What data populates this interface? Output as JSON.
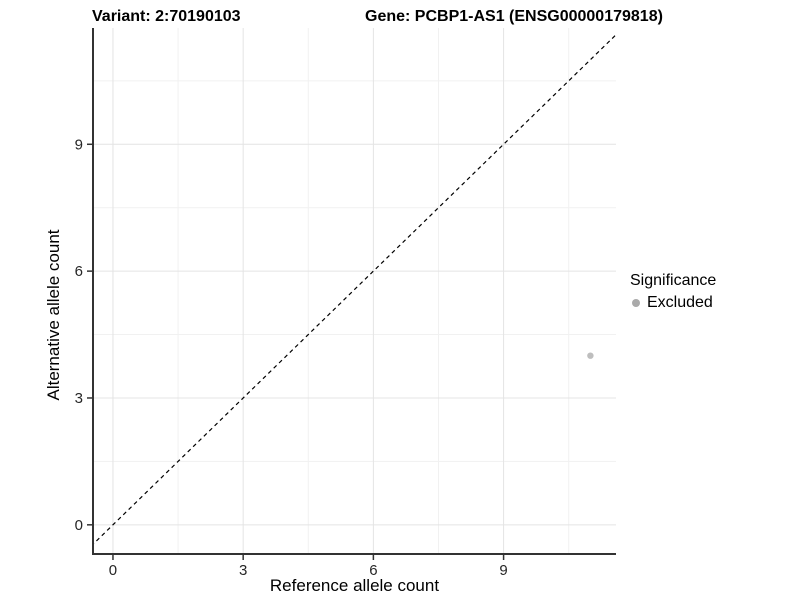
{
  "titles": {
    "variant": "Variant: 2:70190103",
    "gene": "Gene: PCBP1-AS1 (ENSG00000179818)"
  },
  "chart_data": {
    "type": "scatter",
    "title_left": "Variant: 2:70190103",
    "title_right": "Gene: PCBP1-AS1 (ENSG00000179818)",
    "xlabel": "Reference allele count",
    "ylabel": "Alternative allele count",
    "x_ticks": [
      0,
      3,
      6,
      9
    ],
    "y_ticks": [
      0,
      3,
      6,
      9
    ],
    "x_minor": [
      1.5,
      4.5,
      7.5,
      10.5
    ],
    "y_minor": [
      1.5,
      4.5,
      7.5,
      10.5
    ],
    "xlim": [
      -0.46,
      11.59
    ],
    "ylim": [
      -0.69,
      11.75
    ],
    "grid": true,
    "legend_position": "right",
    "series": [
      {
        "name": "Excluded",
        "points": [
          {
            "x": 11,
            "y": 4
          }
        ],
        "color": "#bebebe",
        "point_radius": 3.2
      }
    ],
    "reference_line": {
      "kind": "identity",
      "equation": "y = x",
      "style": "dashed",
      "color": "#000000"
    },
    "legend": {
      "title": "Significance",
      "items": [
        {
          "label": "Excluded",
          "color": "#aaaaaa"
        }
      ]
    },
    "colors": {
      "background": "#ffffff",
      "grid_major": "#e4e4e4",
      "grid_minor": "#f1f1f1",
      "axis_line": "#333333",
      "tick_label": "#262626"
    }
  }
}
